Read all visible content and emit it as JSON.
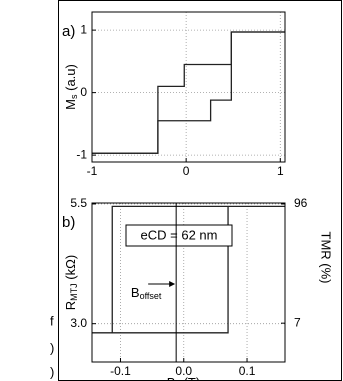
{
  "cropped_text": [
    "f",
    ")",
    ")"
  ],
  "chart_data": [
    {
      "type": "line",
      "panel_label": "a)",
      "ylabel": {
        "main": "M",
        "sub": "s",
        "rest": " (a.u)"
      },
      "xlim": [
        -1,
        1.05
      ],
      "ylim": [
        -1.11,
        1.29
      ],
      "xticks": [
        -1,
        0,
        1
      ],
      "yticks": [
        1,
        0,
        -1
      ],
      "grid": true,
      "series": [
        {
          "color": "#222222",
          "x": [
            1.05,
            0.48,
            0.48,
            -0.02,
            -0.02,
            -0.3,
            -0.3,
            -1
          ],
          "values": [
            0.97,
            0.97,
            0.45,
            0.45,
            0.1,
            0.1,
            -0.97,
            -0.97
          ]
        },
        {
          "color": "#222222",
          "x": [
            -1,
            -0.3,
            -0.3,
            0.26,
            0.26,
            0.48,
            0.48,
            1.05
          ],
          "values": [
            -0.97,
            -0.97,
            -0.45,
            -0.45,
            -0.12,
            -0.12,
            0.97,
            0.97
          ]
        }
      ]
    },
    {
      "type": "line",
      "panel_label": "b)",
      "ylabel": {
        "main": "R",
        "sub": "MTJ",
        "rest": " (kΩ)"
      },
      "y2label": "TMR (%)",
      "xlabel": {
        "main": "B",
        "sub": "z",
        "rest": " (T)"
      },
      "annotation": "eCD = 62 nm",
      "offset_label": {
        "main": "B",
        "sub": "offset"
      },
      "offset_x": -0.012,
      "xlim": [
        -0.145,
        0.16
      ],
      "ylim": [
        2.2,
        5.52
      ],
      "y2lim": [
        -22,
        96.75
      ],
      "xticks": [
        -0.1,
        {
          "value": 0,
          "label": "0.0"
        },
        0.1
      ],
      "yticks": [
        5.5,
        {
          "value": 3,
          "label": "3.0"
        }
      ],
      "y2ticks": [
        96,
        7
      ],
      "grid": true,
      "series": [
        {
          "color": "#222222",
          "x": [
            -0.145,
            0.07,
            0.07
          ],
          "values": [
            2.81,
            2.81,
            5.45
          ]
        },
        {
          "color": "#222222",
          "x": [
            0.16,
            -0.113,
            -0.113
          ],
          "values": [
            5.45,
            5.45,
            2.81
          ]
        }
      ]
    }
  ]
}
